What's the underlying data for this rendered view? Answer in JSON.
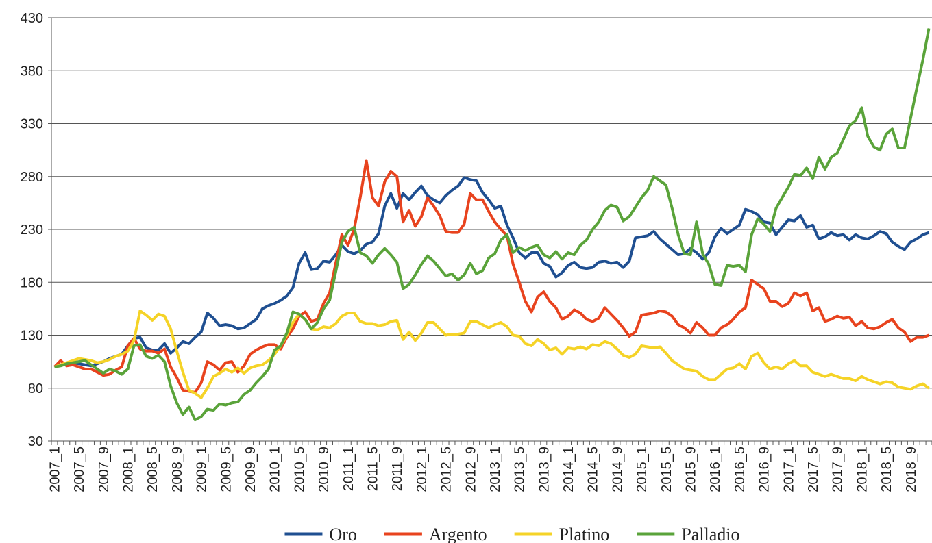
{
  "chart_data": {
    "type": "line",
    "categories": [
      "2007_1",
      null,
      null,
      null,
      "2007_5",
      null,
      null,
      null,
      "2007_9",
      null,
      null,
      null,
      "2008_1",
      null,
      null,
      null,
      "2008_5",
      null,
      null,
      null,
      "2008_9",
      null,
      null,
      null,
      "2009_1",
      null,
      null,
      null,
      "2009_5",
      null,
      null,
      null,
      "2009_9",
      null,
      null,
      null,
      "2010_1",
      null,
      null,
      null,
      "2010_5",
      null,
      null,
      null,
      "2010_9",
      null,
      null,
      null,
      "2011_1",
      null,
      null,
      null,
      "2011_5",
      null,
      null,
      null,
      "2011_9",
      null,
      null,
      null,
      "2012_1",
      null,
      null,
      null,
      "2012_5",
      null,
      null,
      null,
      "2012_9",
      null,
      null,
      null,
      "2013_1",
      null,
      null,
      null,
      "2013_5",
      null,
      null,
      null,
      "2013_9",
      null,
      null,
      null,
      "2014_1",
      null,
      null,
      null,
      "2014_5",
      null,
      null,
      null,
      "2014_9",
      null,
      null,
      null,
      "2015_1",
      null,
      null,
      null,
      "2015_5",
      null,
      null,
      null,
      "2015_9",
      null,
      null,
      null,
      "2016_1",
      null,
      null,
      null,
      "2016_5",
      null,
      null,
      null,
      "2016_9",
      null,
      null,
      null,
      "2017_1",
      null,
      null,
      null,
      "2017_5",
      null,
      null,
      null,
      "2017_9",
      null,
      null,
      null,
      "2018_1",
      null,
      null,
      null,
      "2018_5",
      null,
      null,
      null,
      "2018_9",
      null,
      null,
      null
    ],
    "series": [
      {
        "name": "Oro",
        "color": "#1f4f91",
        "values": [
          100,
          102,
          103,
          104,
          103,
          102,
          101,
          103,
          105,
          108,
          110,
          112,
          120,
          127,
          128,
          118,
          116,
          116,
          122,
          113,
          118,
          124,
          122,
          128,
          133,
          151,
          146,
          139,
          140,
          139,
          136,
          137,
          141,
          145,
          155,
          158,
          160,
          163,
          167,
          175,
          198,
          208,
          192,
          193,
          200,
          199,
          206,
          215,
          209,
          207,
          210,
          216,
          218,
          226,
          252,
          264,
          250,
          264,
          258,
          265,
          271,
          262,
          258,
          255,
          262,
          267,
          271,
          279,
          277,
          276,
          265,
          258,
          250,
          252,
          234,
          222,
          208,
          203,
          208,
          208,
          198,
          195,
          185,
          189,
          196,
          199,
          194,
          193,
          194,
          199,
          200,
          198,
          199,
          194,
          200,
          222,
          223,
          224,
          228,
          221,
          216,
          211,
          206,
          207,
          212,
          208,
          202,
          208,
          223,
          231,
          226,
          230,
          234,
          249,
          247,
          244,
          237,
          236,
          225,
          232,
          239,
          238,
          243,
          232,
          234,
          221,
          223,
          227,
          224,
          225,
          220,
          225,
          222,
          221,
          224,
          228,
          226,
          218,
          214,
          211,
          218,
          221,
          225,
          227
        ]
      },
      {
        "name": "Argento",
        "color": "#e8431e",
        "values": [
          100,
          106,
          101,
          102,
          100,
          98,
          98,
          95,
          92,
          93,
          97,
          100,
          120,
          127,
          117,
          115,
          115,
          113,
          117,
          100,
          90,
          78,
          77,
          76,
          85,
          105,
          102,
          97,
          104,
          105,
          95,
          101,
          112,
          116,
          119,
          121,
          121,
          117,
          128,
          136,
          148,
          152,
          143,
          145,
          160,
          170,
          198,
          225,
          215,
          230,
          260,
          295,
          260,
          252,
          275,
          285,
          280,
          237,
          248,
          233,
          242,
          260,
          252,
          243,
          228,
          227,
          227,
          235,
          264,
          258,
          258,
          247,
          237,
          230,
          224,
          197,
          180,
          162,
          152,
          166,
          171,
          162,
          156,
          145,
          148,
          154,
          151,
          145,
          143,
          146,
          156,
          150,
          144,
          137,
          129,
          133,
          149,
          150,
          151,
          153,
          152,
          148,
          140,
          137,
          132,
          142,
          137,
          130,
          130,
          137,
          140,
          145,
          152,
          156,
          182,
          178,
          174,
          162,
          162,
          157,
          160,
          170,
          167,
          170,
          153,
          156,
          143,
          145,
          148,
          146,
          147,
          139,
          143,
          137,
          136,
          138,
          142,
          145,
          137,
          133,
          124,
          128,
          128,
          130
        ]
      },
      {
        "name": "Platino",
        "color": "#f5d327",
        "values": [
          100,
          102,
          104,
          106,
          108,
          107,
          106,
          104,
          105,
          107,
          110,
          112,
          115,
          125,
          153,
          149,
          144,
          150,
          148,
          136,
          115,
          95,
          78,
          75,
          71,
          80,
          91,
          94,
          98,
          95,
          99,
          94,
          99,
          101,
          102,
          106,
          112,
          120,
          130,
          142,
          150,
          145,
          136,
          135,
          138,
          137,
          141,
          148,
          151,
          151,
          143,
          141,
          141,
          139,
          140,
          143,
          144,
          126,
          133,
          125,
          132,
          142,
          142,
          136,
          130,
          131,
          131,
          132,
          143,
          143,
          140,
          137,
          140,
          142,
          138,
          130,
          129,
          122,
          120,
          126,
          122,
          116,
          118,
          112,
          118,
          117,
          119,
          117,
          121,
          120,
          124,
          122,
          117,
          111,
          109,
          112,
          120,
          119,
          118,
          119,
          113,
          106,
          102,
          98,
          97,
          96,
          91,
          88,
          88,
          93,
          98,
          99,
          103,
          98,
          110,
          113,
          104,
          98,
          100,
          98,
          103,
          106,
          101,
          101,
          95,
          93,
          91,
          93,
          91,
          89,
          89,
          87,
          91,
          88,
          86,
          84,
          86,
          85,
          81,
          80,
          79,
          82,
          84,
          80
        ]
      },
      {
        "name": "Palladio",
        "color": "#5aa33a",
        "values": [
          100,
          101,
          103,
          104,
          105,
          106,
          102,
          98,
          94,
          98,
          96,
          93,
          98,
          120,
          121,
          110,
          108,
          111,
          105,
          82,
          66,
          55,
          62,
          50,
          53,
          60,
          59,
          65,
          64,
          66,
          67,
          74,
          78,
          85,
          91,
          98,
          116,
          120,
          132,
          152,
          150,
          145,
          136,
          142,
          155,
          163,
          190,
          218,
          228,
          232,
          208,
          205,
          198,
          206,
          212,
          206,
          199,
          174,
          178,
          187,
          197,
          205,
          200,
          193,
          186,
          188,
          182,
          187,
          198,
          188,
          191,
          203,
          207,
          220,
          225,
          208,
          213,
          210,
          213,
          215,
          206,
          203,
          209,
          202,
          208,
          206,
          215,
          220,
          230,
          237,
          248,
          253,
          251,
          238,
          242,
          251,
          260,
          267,
          280,
          276,
          272,
          250,
          225,
          207,
          206,
          237,
          207,
          197,
          178,
          177,
          196,
          195,
          196,
          190,
          225,
          240,
          235,
          228,
          250,
          260,
          270,
          282,
          281,
          288,
          278,
          298,
          287,
          298,
          302,
          315,
          328,
          333,
          345,
          318,
          308,
          305,
          320,
          325,
          307,
          307,
          335,
          363,
          390,
          420
        ]
      }
    ],
    "ylim": [
      30,
      430
    ],
    "yticks": [
      30,
      80,
      130,
      180,
      230,
      280,
      330,
      380,
      430
    ],
    "grid": true,
    "legend": "bottom"
  }
}
